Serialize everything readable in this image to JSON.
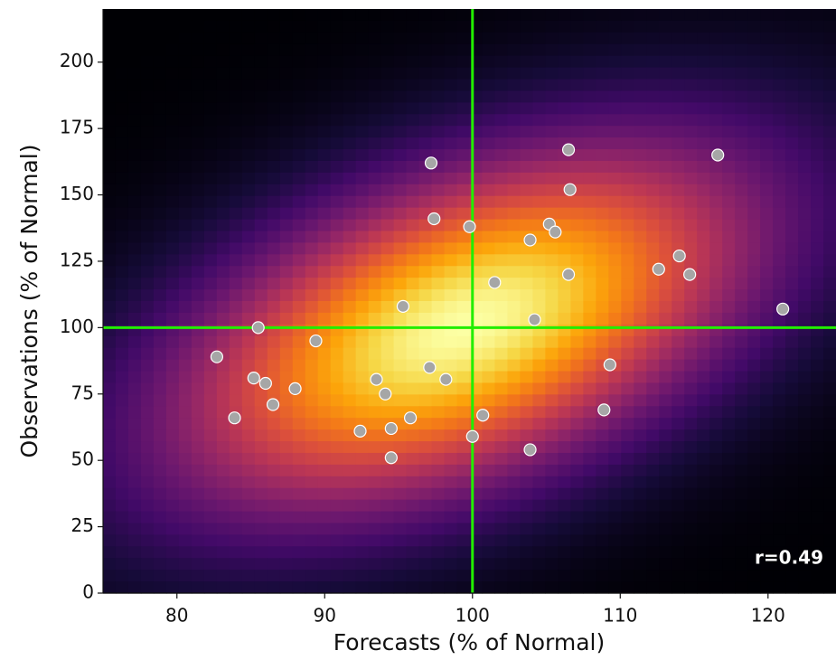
{
  "chart_data": {
    "type": "scatter",
    "xlabel": "Forecasts (% of Normal)",
    "ylabel": "Observations (% of Normal)",
    "annotation": "r=0.49",
    "x": [
      82.7,
      83.9,
      85.2,
      85.5,
      86.0,
      86.5,
      88.0,
      89.4,
      92.4,
      93.5,
      94.1,
      94.5,
      94.5,
      95.3,
      95.8,
      97.1,
      97.2,
      97.4,
      98.2,
      99.8,
      100.0,
      100.7,
      101.5,
      103.9,
      103.9,
      104.2,
      105.2,
      105.6,
      106.5,
      106.6,
      106.5,
      108.9,
      109.3,
      112.6,
      114.0,
      114.7,
      116.6,
      121.0
    ],
    "values": [
      89,
      66,
      81,
      100,
      79,
      71,
      77,
      95,
      61,
      80.5,
      75,
      62,
      51,
      108,
      66,
      85,
      162,
      141,
      80.5,
      138,
      59,
      67,
      117,
      133,
      54,
      103,
      139,
      136,
      167,
      152,
      120,
      69,
      86,
      122,
      127,
      120,
      165,
      107
    ],
    "color": "#a6a6a6",
    "vline": 100,
    "hline": 100,
    "line_color": "#22ee00",
    "colormap": "inferno",
    "xlim": [
      75,
      124.6
    ],
    "ylim": [
      0,
      220
    ],
    "xticks": [
      80,
      90,
      100,
      110,
      120
    ],
    "yticks": [
      0,
      25,
      50,
      75,
      100,
      125,
      150,
      175,
      200
    ]
  }
}
